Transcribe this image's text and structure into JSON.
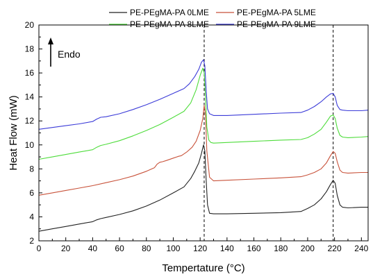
{
  "chart_data": {
    "type": "line",
    "xlabel": "Tempertature (°C)",
    "ylabel": "Heat Flow (mW)",
    "xlim": [
      0,
      245
    ],
    "ylim": [
      2,
      20
    ],
    "xticks": [
      0,
      20,
      40,
      60,
      80,
      100,
      120,
      140,
      160,
      180,
      200,
      220,
      240
    ],
    "yticks": [
      2,
      4,
      6,
      8,
      10,
      12,
      14,
      16,
      18,
      20
    ],
    "grid": false,
    "legend_position": "top",
    "annotation": {
      "text": "Endo",
      "arrow": "up"
    },
    "reference_lines_x": [
      123,
      219
    ],
    "series": [
      {
        "name": "PE-PEgMA-PA 0LME",
        "color": "#222222",
        "x": [
          0,
          10,
          20,
          30,
          40,
          43,
          46,
          50,
          60,
          70,
          80,
          90,
          100,
          108,
          113,
          116,
          119,
          121,
          122.5,
          123.5,
          124.5,
          125.5,
          127,
          130,
          140,
          160,
          180,
          195,
          200,
          205,
          210,
          214,
          217,
          219,
          220.5,
          222,
          224,
          226,
          230,
          240,
          245
        ],
        "y": [
          2.8,
          3.0,
          3.2,
          3.4,
          3.6,
          3.75,
          3.85,
          3.95,
          4.2,
          4.5,
          4.9,
          5.4,
          6.0,
          6.5,
          7.2,
          7.8,
          8.5,
          9.3,
          10.0,
          9.5,
          7.0,
          5.0,
          4.3,
          4.25,
          4.25,
          4.3,
          4.35,
          4.45,
          4.7,
          5.0,
          5.5,
          6.1,
          6.7,
          7.05,
          6.8,
          5.8,
          5.0,
          4.8,
          4.75,
          4.8,
          4.8
        ]
      },
      {
        "name": "PE-PEgMA-PA 5LME",
        "color": "#c8523a",
        "x": [
          0,
          10,
          20,
          30,
          40,
          50,
          60,
          70,
          80,
          86,
          88,
          90,
          92,
          95,
          100,
          104,
          106,
          110,
          114,
          117,
          120,
          122,
          123,
          124,
          125,
          127,
          130,
          140,
          160,
          180,
          195,
          200,
          205,
          210,
          214,
          217,
          219,
          220.5,
          222,
          224,
          226,
          230,
          240,
          245
        ],
        "y": [
          5.8,
          6.0,
          6.2,
          6.4,
          6.6,
          6.85,
          7.1,
          7.4,
          7.8,
          8.1,
          8.4,
          8.55,
          8.6,
          8.7,
          8.9,
          9.05,
          9.1,
          9.4,
          9.8,
          10.3,
          11.2,
          12.2,
          13.3,
          12.5,
          9.5,
          7.3,
          7.0,
          7.05,
          7.15,
          7.25,
          7.35,
          7.5,
          7.7,
          8.0,
          8.5,
          9.1,
          9.45,
          9.3,
          8.6,
          7.9,
          7.7,
          7.65,
          7.7,
          7.7
        ]
      },
      {
        "name": "PE-PEgMA-PA 8LME",
        "color": "#4ddc3a",
        "x": [
          0,
          10,
          20,
          30,
          40,
          43,
          46,
          50,
          60,
          70,
          80,
          90,
          100,
          108,
          113,
          117,
          120,
          122,
          123,
          124,
          125,
          126.5,
          128,
          130,
          140,
          160,
          180,
          195,
          200,
          205,
          210,
          214,
          217,
          219,
          220.5,
          222,
          224,
          226,
          230,
          240,
          245
        ],
        "y": [
          8.8,
          9.0,
          9.2,
          9.4,
          9.6,
          9.8,
          9.95,
          10.05,
          10.35,
          10.75,
          11.2,
          11.7,
          12.3,
          12.8,
          13.5,
          14.6,
          15.8,
          16.4,
          16.0,
          14.0,
          11.5,
          10.4,
          10.2,
          10.15,
          10.2,
          10.3,
          10.4,
          10.45,
          10.6,
          10.9,
          11.3,
          11.9,
          12.4,
          12.5,
          12.2,
          11.4,
          10.8,
          10.65,
          10.6,
          10.65,
          10.7
        ]
      },
      {
        "name": "PE-PEgMA-PA 9LME",
        "color": "#3b3bd8",
        "x": [
          0,
          10,
          20,
          30,
          40,
          43,
          46,
          50,
          60,
          70,
          80,
          90,
          100,
          108,
          112,
          116,
          119,
          121,
          122.5,
          123.5,
          124.5,
          125.5,
          127,
          130,
          140,
          160,
          180,
          195,
          200,
          205,
          210,
          214,
          217,
          219,
          220.5,
          222,
          224,
          226,
          230,
          240,
          245
        ],
        "y": [
          11.3,
          11.45,
          11.6,
          11.75,
          11.95,
          12.15,
          12.3,
          12.35,
          12.6,
          12.95,
          13.35,
          13.8,
          14.3,
          14.7,
          15.1,
          15.7,
          16.3,
          16.9,
          17.1,
          16.6,
          14.5,
          13.0,
          12.6,
          12.45,
          12.45,
          12.55,
          12.65,
          12.7,
          12.9,
          13.2,
          13.6,
          14.0,
          14.25,
          14.3,
          14.0,
          13.3,
          12.95,
          12.9,
          12.85,
          12.85,
          12.9
        ]
      }
    ]
  }
}
